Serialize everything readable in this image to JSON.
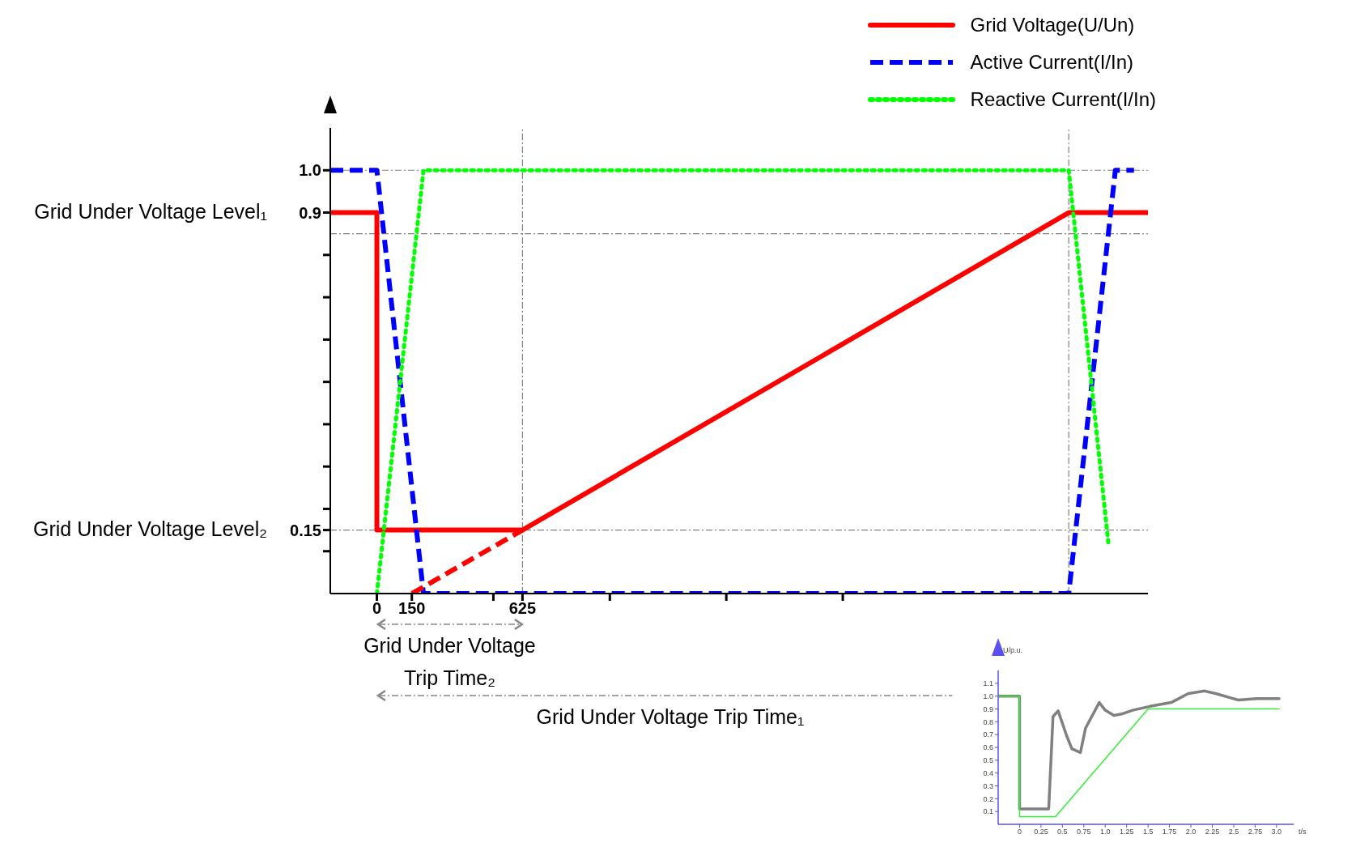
{
  "chart_data": [
    {
      "type": "line",
      "legend": "top right",
      "xlim": [
        -200,
        3310
      ],
      "ylim": [
        0,
        1.1
      ],
      "xticks": [
        0,
        150,
        {
          "value": 500,
          "label": null
        },
        625,
        {
          "value": 1000,
          "label": null
        },
        {
          "value": 1500,
          "label": null
        },
        {
          "value": 2000,
          "label": null
        }
      ],
      "yticks": [
        {
          "value": 0.1,
          "label": null
        },
        0.15,
        {
          "value": 0.2,
          "label": null
        },
        {
          "value": 0.3,
          "label": null
        },
        {
          "value": 0.4,
          "label": null
        },
        {
          "value": 0.5,
          "label": null
        },
        {
          "value": 0.6,
          "label": null
        },
        {
          "value": 0.7,
          "label": null
        },
        {
          "value": 0.8,
          "label": null
        },
        0.9,
        {
          "value": 1.0,
          "label": "1.0"
        }
      ],
      "series": [
        {
          "name": "Grid Voltage(U/Un)",
          "color": "#ff0000",
          "line_style": "solid",
          "x": [
            -200,
            0,
            0,
            625,
            2970,
            3310
          ],
          "values": [
            0.9,
            0.9,
            0.15,
            0.15,
            0.9,
            0.9
          ]
        },
        {
          "name": "Active Current(I/In)",
          "color": "#0000ff",
          "line_style": "dashed",
          "x": [
            -200,
            0,
            200,
            2970,
            3170,
            3250
          ],
          "values": [
            1.0,
            1.0,
            0,
            0,
            1.0,
            1.0
          ]
        },
        {
          "name": "Reactive Current(I/In)",
          "color": "#00ff00",
          "line_style": "dotted",
          "x": [
            0,
            200,
            2970,
            3140
          ],
          "values": [
            0,
            1.0,
            1.0,
            0.12
          ]
        },
        {
          "color": "#ff0000",
          "line_style": "dashed",
          "x": [
            150,
            625
          ],
          "values": [
            0,
            0.15
          ]
        }
      ],
      "ref_lines": [
        {
          "axis": "y",
          "value": 1.0,
          "color": "#808080",
          "line_style": "dashed"
        },
        {
          "axis": "y",
          "value": 0.85,
          "color": "#808080",
          "line_style": "dashed"
        },
        {
          "axis": "y",
          "value": 0.15,
          "color": "#808080",
          "line_style": "dashed"
        },
        {
          "axis": "x",
          "value": 625,
          "color": "#808080",
          "line_style": "dashed"
        },
        {
          "axis": "x",
          "value": 2970,
          "color": "#808080",
          "line_style": "dashed"
        }
      ],
      "annotations": [
        "Grid Under Voltage Level₁",
        "Grid Under Voltage Level₂",
        "Grid Under Voltage Trip Time₂",
        "Grid Under Voltage Trip Time₁"
      ]
    },
    {
      "type": "line",
      "xlabel": "t/s",
      "ylabel": "U/p.u.",
      "xlim": [
        -0.25,
        3.2
      ],
      "ylim": [
        0,
        1.2
      ],
      "xticks": [
        0,
        0.25,
        0.5,
        0.75,
        {
          "value": 1,
          "label": "1.0"
        },
        1.25,
        1.5,
        1.75,
        {
          "value": 2,
          "label": "2.0"
        },
        2.25,
        2.5,
        2.75,
        {
          "value": 3,
          "label": "3.0"
        }
      ],
      "yticks": [
        0.1,
        0.2,
        0.3,
        0.4,
        0.5,
        0.6,
        0.7,
        0.8,
        0.9,
        {
          "value": 1,
          "label": "1.0"
        },
        1.1
      ],
      "series": [
        {
          "color": "#808080",
          "line_style": "solid",
          "x": [
            -0.25,
            0,
            0,
            0.34,
            0.39,
            0.45,
            0.55,
            0.61,
            0.71,
            0.77,
            0.93,
            1.0,
            1.1,
            1.19,
            1.32,
            1.52,
            1.77,
            1.97,
            2.16,
            2.29,
            2.55,
            2.77,
            3.03
          ],
          "values": [
            1.0,
            1.0,
            0.12,
            0.12,
            0.84,
            0.885,
            0.69,
            0.59,
            0.56,
            0.75,
            0.95,
            0.89,
            0.85,
            0.86,
            0.89,
            0.92,
            0.95,
            1.02,
            1.04,
            1.02,
            0.97,
            0.98,
            0.98
          ]
        },
        {
          "color": "#33ee33",
          "line_style": "solid",
          "x": [
            -0.25,
            0,
            0,
            0.42,
            1.5,
            3.03
          ],
          "values": [
            1.0,
            1.0,
            0.06,
            0.06,
            0.9,
            0.9
          ]
        }
      ]
    }
  ]
}
